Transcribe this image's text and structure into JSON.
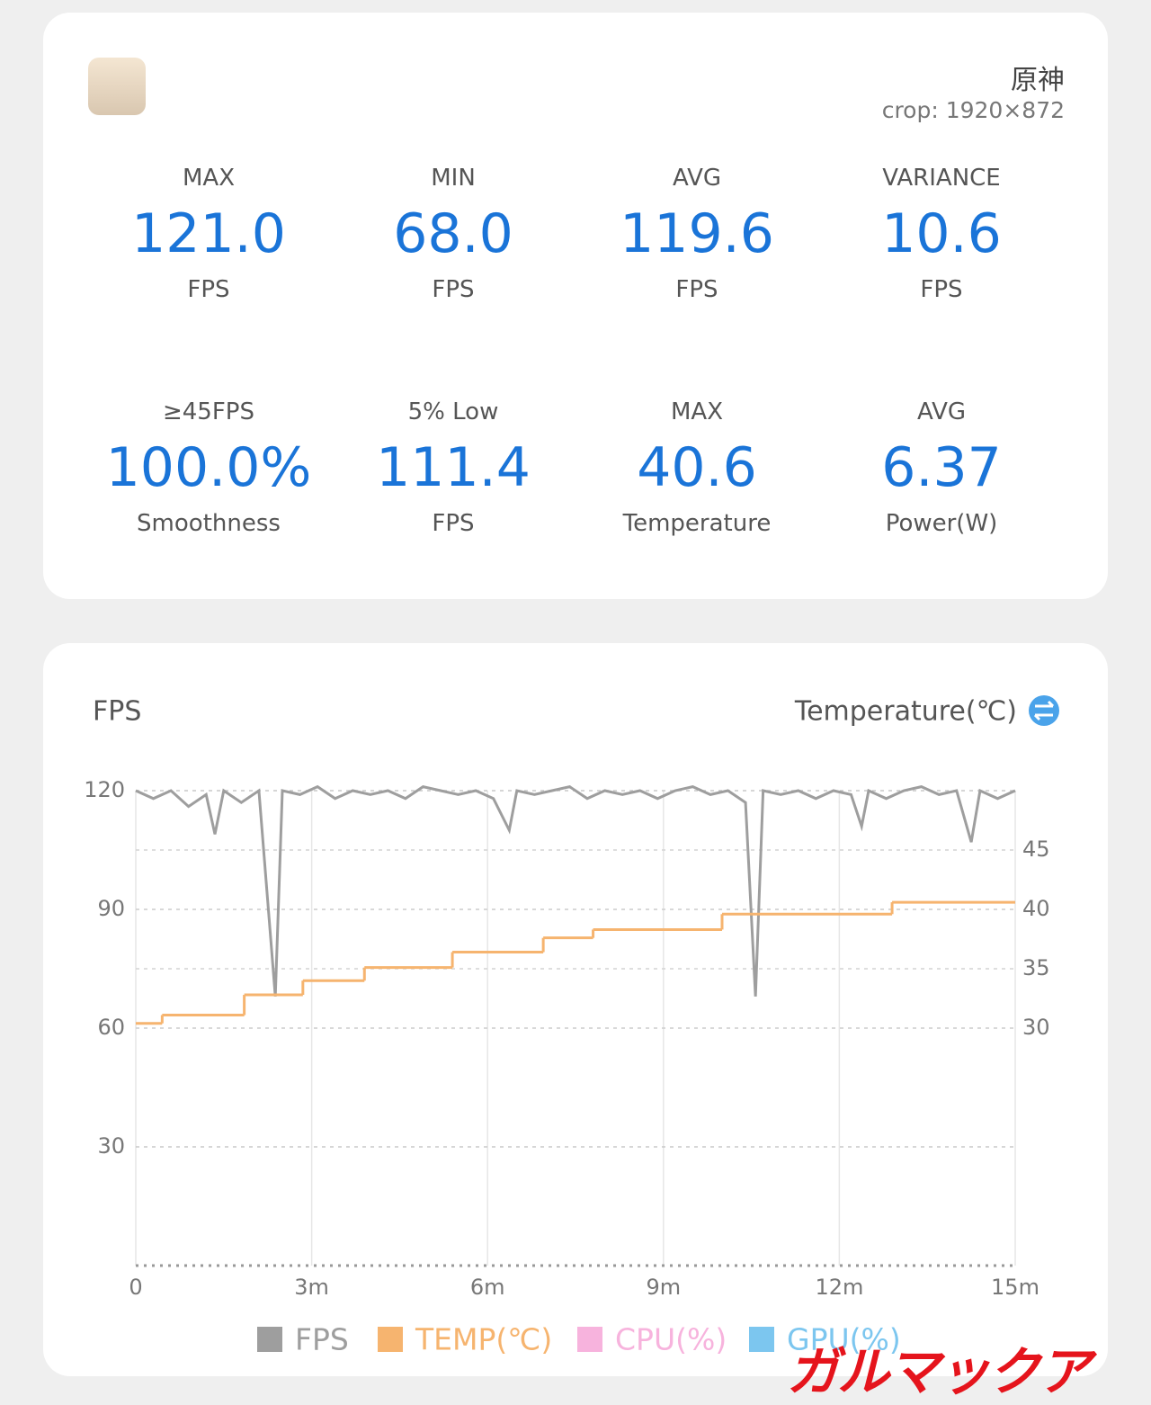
{
  "header": {
    "title": "原神",
    "subtitle": "crop: 1920×872"
  },
  "stats": [
    {
      "label": "MAX",
      "value": "121.0",
      "unit": "FPS"
    },
    {
      "label": "MIN",
      "value": "68.0",
      "unit": "FPS"
    },
    {
      "label": "AVG",
      "value": "119.6",
      "unit": "FPS"
    },
    {
      "label": "VARIANCE",
      "value": "10.6",
      "unit": "FPS"
    },
    {
      "label": "≥45FPS",
      "value": "100.0%",
      "unit": "Smoothness"
    },
    {
      "label": "5% Low",
      "value": "111.4",
      "unit": "FPS"
    },
    {
      "label": "MAX",
      "value": "40.6",
      "unit": "Temperature"
    },
    {
      "label": "AVG",
      "value": "6.37",
      "unit": "Power(W)"
    }
  ],
  "chart_data": {
    "type": "line",
    "y_label": "FPS",
    "y2_label": "Temperature(℃)",
    "xlim": [
      0,
      15
    ],
    "xticks": [
      {
        "value": 0,
        "label": "0"
      },
      {
        "value": 3,
        "label": "3m"
      },
      {
        "value": 6,
        "label": "6m"
      },
      {
        "value": 9,
        "label": "9m"
      },
      {
        "value": 12,
        "label": "12m"
      },
      {
        "value": 15,
        "label": "15m"
      }
    ],
    "ylim": [
      0,
      120
    ],
    "yticks": [
      30,
      60,
      90,
      120
    ],
    "y2lim": [
      10,
      50
    ],
    "y2ticks": [
      30,
      35,
      40,
      45
    ],
    "grid": true,
    "series": [
      {
        "name": "FPS",
        "color": "#9e9e9e",
        "x": [
          0,
          0.3,
          0.6,
          0.9,
          1.2,
          1.35,
          1.5,
          1.8,
          2.1,
          2.38,
          2.5,
          2.8,
          3.1,
          3.4,
          3.7,
          4.0,
          4.3,
          4.6,
          4.9,
          5.2,
          5.5,
          5.8,
          6.1,
          6.37,
          6.5,
          6.8,
          7.1,
          7.4,
          7.7,
          8.0,
          8.3,
          8.6,
          8.9,
          9.2,
          9.5,
          9.8,
          10.1,
          10.4,
          10.57,
          10.7,
          11.0,
          11.3,
          11.6,
          11.9,
          12.2,
          12.38,
          12.5,
          12.8,
          13.1,
          13.4,
          13.7,
          14.0,
          14.25,
          14.4,
          14.7,
          15
        ],
        "values": [
          120,
          118,
          120,
          116,
          119,
          109,
          120,
          117,
          120,
          68,
          120,
          119,
          121,
          118,
          120,
          119,
          120,
          118,
          121,
          120,
          119,
          120,
          118,
          110,
          120,
          119,
          120,
          121,
          118,
          120,
          119,
          120,
          118,
          120,
          121,
          119,
          120,
          117,
          68,
          120,
          119,
          120,
          118,
          120,
          119,
          111,
          120,
          118,
          120,
          121,
          119,
          120,
          107,
          120,
          118,
          120
        ]
      },
      {
        "name": "TEMP(℃)",
        "color": "#f6b46f",
        "axis": "y2",
        "step": "after",
        "x": [
          0,
          0.45,
          1.85,
          2.85,
          3.9,
          5.4,
          6.95,
          7.8,
          10.0,
          12.9
        ],
        "values": [
          30.4,
          31.1,
          32.8,
          34.0,
          35.1,
          36.4,
          37.6,
          38.3,
          39.6,
          40.6
        ]
      }
    ],
    "hidden_series": [
      {
        "name": "CPU(%)",
        "color": "#f7b3dd"
      },
      {
        "name": "GPU(%)",
        "color": "#7cc6ef"
      }
    ]
  },
  "watermark": "ガルマックア"
}
